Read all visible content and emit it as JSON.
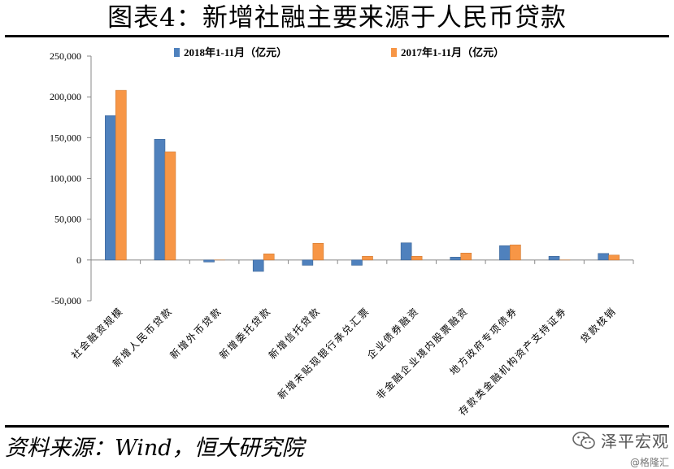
{
  "title": "图表4：新增社融主要来源于人民币贷款",
  "source": "资料来源：Wind，恒大研究院",
  "watermark": {
    "name": "泽平宏观",
    "handle": "@格隆汇",
    "icon": "wechat-icon"
  },
  "chart_data": {
    "type": "bar",
    "title": "",
    "xlabel": "",
    "ylabel": "",
    "ylim": [
      -50000,
      250000
    ],
    "yticks": [
      250000,
      200000,
      150000,
      100000,
      50000,
      0,
      -50000
    ],
    "ytick_labels": [
      "250,000",
      "200,000",
      "150,000",
      "100,000",
      "50,000",
      "0",
      "-50,000"
    ],
    "grid": false,
    "legend": "top",
    "categories": [
      "社会融资规模",
      "新增人民币贷款",
      "新增外币贷款",
      "新增委托贷款",
      "新增信托贷款",
      "新增未贴现银行承兑汇票",
      "企业债券融资",
      "非金融企业境内股票融资",
      "地方政府专项债券",
      "存款类金融机构资产支持证券",
      "贷款核销"
    ],
    "series": [
      {
        "name": "2018年1-11月（亿元）",
        "color": "#4F81BD",
        "values": [
          177000,
          148000,
          -2500,
          -14000,
          -6500,
          -6500,
          21000,
          3500,
          17500,
          4500,
          8000
        ]
      },
      {
        "name": "2017年1-11月（亿元）",
        "color": "#F79646",
        "values": [
          208000,
          132500,
          0,
          7500,
          20500,
          4500,
          4500,
          8500,
          18500,
          0,
          6000
        ]
      }
    ]
  }
}
